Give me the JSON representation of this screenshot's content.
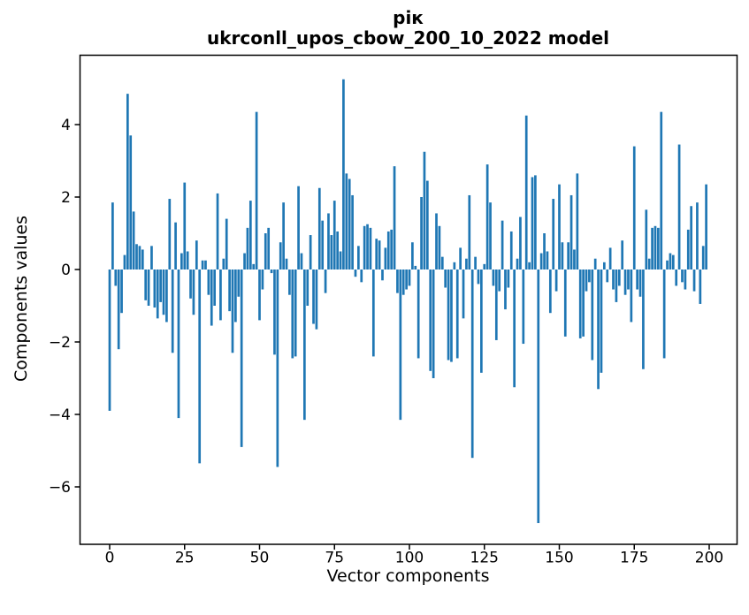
{
  "figure": {
    "title_line1": "рік",
    "title_line2": "ukrconll_upos_cbow_200_10_2022 model",
    "xlabel": "Vector components",
    "ylabel": "Components values"
  },
  "chart_data": {
    "type": "bar",
    "title": "рік — ukrconll_upos_cbow_200_10_2022 model",
    "xlabel": "Vector components",
    "ylabel": "Components values",
    "bar_color": "#1f77b4",
    "axis_color": "#000000",
    "background_color": "#ffffff",
    "x_ticks": [
      0,
      25,
      50,
      75,
      100,
      125,
      150,
      175,
      200
    ],
    "y_ticks": [
      4,
      2,
      0,
      -2,
      -4,
      -6
    ],
    "xlim": [
      -10,
      209
    ],
    "ylim": [
      -7.56,
      5.93
    ],
    "grid": false,
    "legend": "none",
    "n_bars": 200,
    "values": [
      -3.9,
      1.85,
      -0.45,
      -2.2,
      -1.2,
      0.4,
      4.85,
      3.7,
      1.6,
      0.7,
      0.65,
      0.55,
      -0.85,
      -1.0,
      0.65,
      -1.05,
      -1.35,
      -0.9,
      -1.25,
      -1.45,
      1.95,
      -2.3,
      1.3,
      -4.1,
      0.45,
      2.4,
      0.5,
      -0.8,
      -1.25,
      0.8,
      -5.35,
      0.25,
      0.25,
      -0.7,
      -1.55,
      -1.0,
      2.1,
      -1.4,
      0.3,
      1.4,
      -1.15,
      -2.3,
      -1.45,
      -0.75,
      -4.9,
      0.45,
      1.15,
      1.9,
      0.15,
      4.35,
      -1.4,
      -0.55,
      1.0,
      1.15,
      -0.1,
      -2.35,
      -5.45,
      0.75,
      1.85,
      0.3,
      -0.7,
      -2.45,
      -2.4,
      2.3,
      0.45,
      -4.15,
      -1.0,
      0.95,
      -1.5,
      -1.65,
      2.25,
      1.35,
      -0.65,
      1.55,
      0.95,
      1.9,
      1.05,
      0.5,
      5.25,
      2.65,
      2.5,
      2.05,
      -0.2,
      0.65,
      -0.35,
      1.2,
      1.25,
      1.15,
      -2.4,
      0.85,
      0.8,
      -0.3,
      0.6,
      1.05,
      1.1,
      2.85,
      -0.65,
      -4.15,
      -0.7,
      -0.55,
      -0.45,
      0.75,
      0.1,
      -2.45,
      2.0,
      3.25,
      2.45,
      -2.8,
      -3.0,
      1.55,
      1.2,
      0.35,
      -0.5,
      -2.5,
      -2.55,
      0.2,
      -2.45,
      0.6,
      -1.35,
      0.3,
      2.05,
      -5.2,
      0.35,
      -0.4,
      -2.85,
      0.15,
      2.9,
      1.85,
      -0.45,
      -1.95,
      -0.6,
      1.35,
      -1.1,
      -0.5,
      1.05,
      -3.25,
      0.3,
      1.45,
      -2.05,
      4.25,
      0.2,
      2.55,
      2.6,
      -7.0,
      0.45,
      1.0,
      0.5,
      -1.2,
      1.95,
      -0.6,
      2.35,
      0.75,
      -1.85,
      0.75,
      2.05,
      0.55,
      2.65,
      -1.9,
      -1.85,
      -0.6,
      -0.35,
      -2.5,
      0.3,
      -3.3,
      -2.85,
      0.2,
      -0.35,
      0.6,
      -0.55,
      -0.9,
      -0.45,
      0.8,
      -0.7,
      -0.55,
      -1.45,
      3.4,
      -0.55,
      -0.75,
      -2.75,
      1.65,
      0.3,
      1.15,
      1.2,
      1.15,
      4.35,
      -2.45,
      0.25,
      0.45,
      0.4,
      -0.45,
      3.45,
      -0.35,
      -0.55,
      1.1,
      1.75,
      -0.6,
      1.85,
      -0.95,
      0.65,
      2.35
    ]
  }
}
